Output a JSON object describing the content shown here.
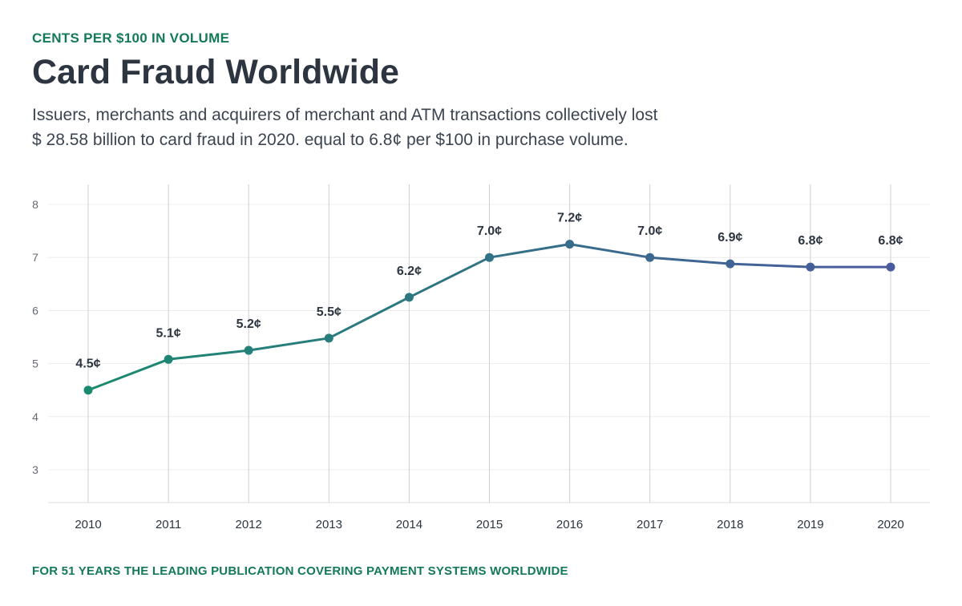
{
  "header": {
    "eyebrow": "CENTS PER $100 IN VOLUME",
    "title": "Card Fraud Worldwide",
    "subtitle_line1": "Issuers, merchants and acquirers of merchant and ATM transactions collectively lost",
    "subtitle_line2": "$ 28.58 billion to card fraud in 2020. equal to 6.8¢ per $100 in purchase volume."
  },
  "footer": {
    "text": "FOR 51 YEARS THE LEADING PUBLICATION COVERING PAYMENT SYSTEMS WORLDWIDE"
  },
  "colors": {
    "line_start": "#1a8a6e",
    "line_end": "#4a5a9e",
    "accent": "#137a55"
  },
  "chart_data": {
    "type": "line",
    "title": "Card Fraud Worldwide",
    "xlabel": "",
    "ylabel": "",
    "categories": [
      "2010",
      "2011",
      "2012",
      "2013",
      "2014",
      "2015",
      "2016",
      "2017",
      "2018",
      "2019",
      "2020"
    ],
    "values": [
      4.5,
      5.08,
      5.25,
      5.48,
      6.25,
      7.0,
      7.25,
      7.0,
      6.88,
      6.82,
      6.82
    ],
    "data_labels": [
      "4.5¢",
      "5.1¢",
      "5.2¢",
      "5.5¢",
      "6.2¢",
      "7.0¢",
      "7.2¢",
      "7.0¢",
      "6.9¢",
      "6.8¢",
      "6.8¢"
    ],
    "yticks": [
      3,
      4,
      5,
      6,
      7,
      8
    ],
    "ylim": [
      2.4,
      8.2
    ],
    "grid": true,
    "legend": "none"
  }
}
